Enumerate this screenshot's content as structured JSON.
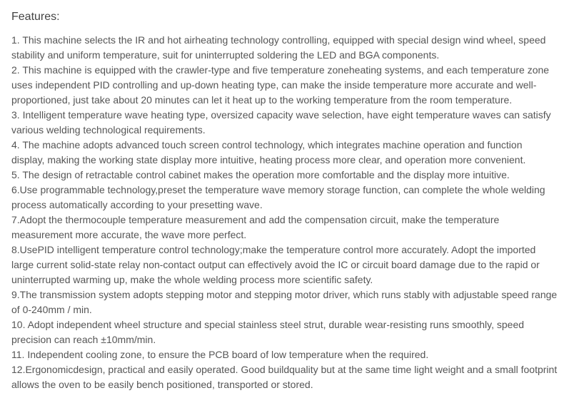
{
  "title": "Features:",
  "features": [
    {
      "num": " 1.   ",
      "text": "This machine selects the IR and hot airheating technology controlling, equipped with special design wind wheel, speed stability and uniform temperature, suit for uninterrupted soldering the LED and BGA components."
    },
    {
      "num": " 2.  ",
      "text": "This machine is equipped with the crawler-type and five temperature zoneheating systems, and each temperature zone uses independent PID controlling and up-down heating type, can make the inside temperature more accurate and well-proportioned, just take about 20 minutes can let it heat up to the working temperature from the room temperature."
    },
    {
      "num": " 3.   ",
      "text": "Intelligent temperature wave heating type, oversized capacity wave selection, have eight temperature waves can satisfy various welding technological requirements."
    },
    {
      "num": " 4.   ",
      "text": "The machine adopts advanced touch screen control technology, which integrates machine operation and function display, making the working state display more intuitive, heating process more clear, and operation more convenient."
    },
    {
      "num": " 5.   ",
      "text": "The design of retractable control cabinet makes the operation more comfortable and the display more intuitive."
    },
    {
      "num": " 6.",
      "text": "Use programmable technology,preset the temperature wave memory storage function, can complete the whole welding process automatically according to your presetting wave."
    },
    {
      "num": " 7.",
      "text": "Adopt the thermocouple temperature measurement and add the compensation circuit, make the temperature measurement more accurate, the wave more perfect."
    },
    {
      "num": " 8.",
      "text": "UsePID intelligent temperature control technology;make the temperature control more accurately. Adopt the imported large current solid-state relay non-contact output can effectively avoid the IC or circuit board damage due to the rapid or uninterrupted warming up, make the whole welding process more scientific safety."
    },
    {
      "num": " 9.",
      "text": "The transmission system adopts stepping motor and stepping motor driver, which runs stably with adjustable speed range of 0-240mm / min."
    },
    {
      "num": " 10. ",
      "text": "Adopt independent wheel structure and special stainless steel strut, durable wear-resisting runs smoothly, speed precision can reach ±10mm/min."
    },
    {
      "num": " 11.  ",
      "text": "Independent cooling zone, to ensure the PCB board of low temperature when the required."
    },
    {
      "num": " 12.",
      "text": "Ergonomicdesign, practical and easily operated. Good buildquality but at the same time light weight and a small footprint allows the oven to be easily bench positioned, transported or stored."
    }
  ]
}
